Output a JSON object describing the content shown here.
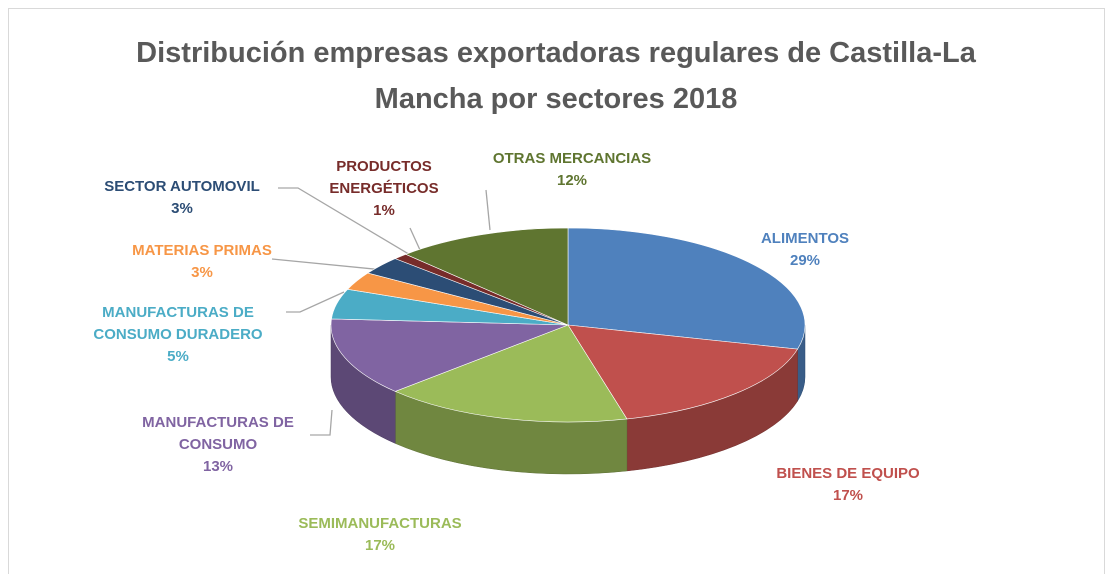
{
  "chart_data": {
    "type": "pie",
    "title": "Distribución empresas exportadoras regulares de Castilla-La Mancha por sectores 2018",
    "categories": [
      "ALIMENTOS",
      "BIENES DE EQUIPO",
      "SEMIMANUFACTURAS",
      "MANUFACTURAS DE CONSUMO",
      "MANUFACTURAS DE CONSUMO DURADERO",
      "MATERIAS PRIMAS",
      "SECTOR AUTOMOVIL",
      "PRODUCTOS ENERGÉTICOS",
      "OTRAS MERCANCIAS"
    ],
    "values": [
      29,
      17,
      17,
      13,
      5,
      3,
      3,
      1,
      12
    ],
    "value_labels": [
      "29%",
      "17%",
      "17%",
      "13%",
      "5%",
      "3%",
      "3%",
      "1%",
      "12%"
    ],
    "colors": [
      "#4f81bd",
      "#c0504d",
      "#9bbb59",
      "#8064a2",
      "#4bacc6",
      "#f79646",
      "#2c4d75",
      "#772c2a",
      "#5f7530"
    ],
    "label_colors": [
      "#4f81bd",
      "#c0504d",
      "#9bbb59",
      "#8064a2",
      "#4bacc6",
      "#f79646",
      "#2c4d75",
      "#772c2a",
      "#5f7530"
    ]
  }
}
